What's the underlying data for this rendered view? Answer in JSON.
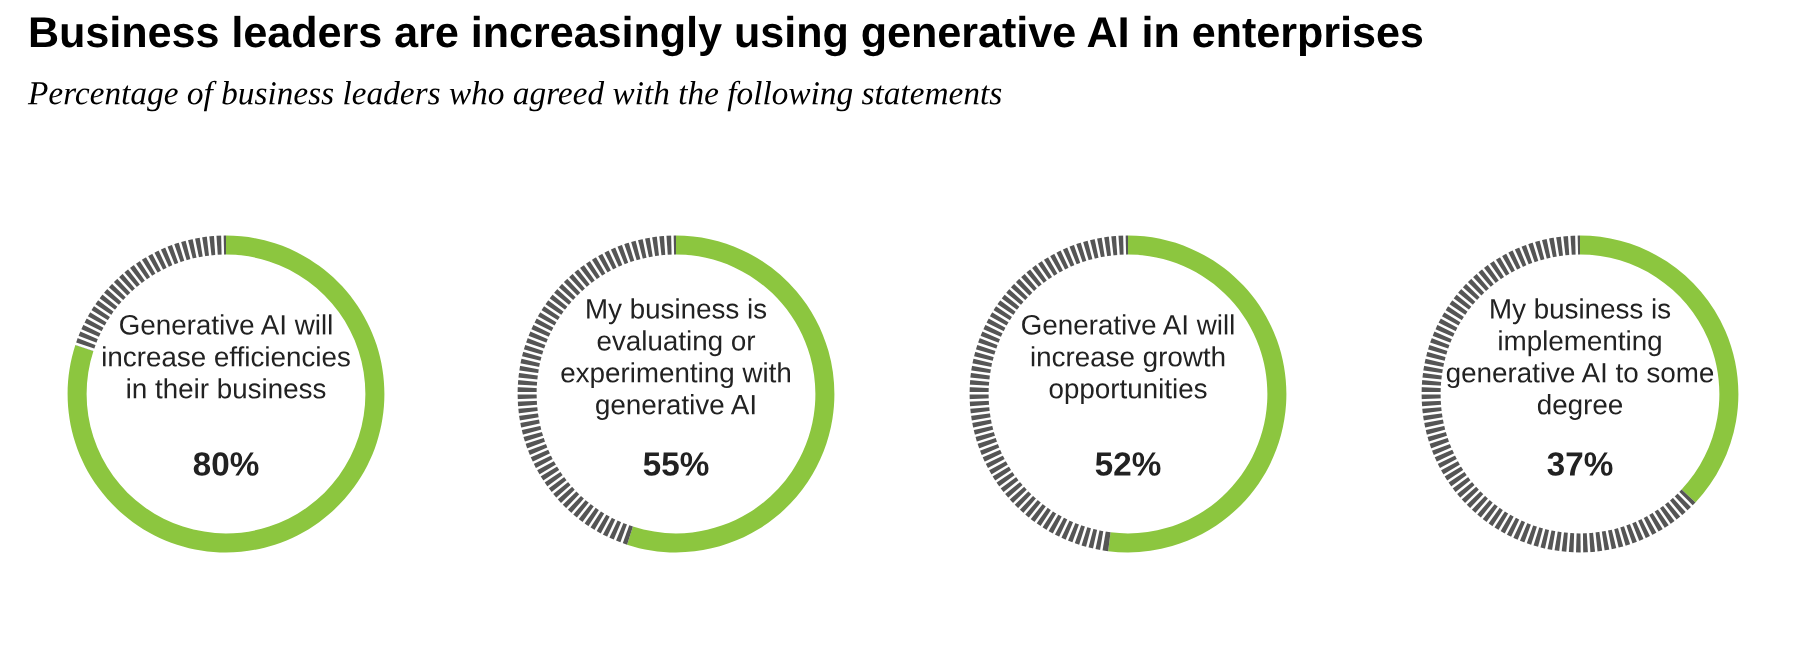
{
  "chart_data": [
    {
      "type": "donut",
      "title": "Business leaders are increasingly using generative AI in enterprises",
      "subtitle": "Percentage of business leaders who agreed with the following statements",
      "annotations": [
        "Generative AI will\nincrease efficiencies\nin their business",
        "80%"
      ],
      "categories": [
        null,
        null
      ],
      "values": [
        80,
        20
      ],
      "colors": [
        "#8cc63f",
        "#555555"
      ]
    },
    {
      "type": "donut",
      "annotations": [
        "My business is\nevaluating or\nexperimenting with\ngenerative AI",
        "55%"
      ],
      "categories": [
        null,
        null
      ],
      "values": [
        55,
        45
      ],
      "colors": [
        "#8cc63f",
        "#555555"
      ]
    },
    {
      "type": "donut",
      "annotations": [
        "Generative AI will\nincrease growth\nopportunities",
        "52%"
      ],
      "categories": [
        null,
        null
      ],
      "values": [
        52,
        48
      ],
      "colors": [
        "#8cc63f",
        "#555555"
      ]
    },
    {
      "type": "donut",
      "annotations": [
        "My business is\nimplementing\ngenerative AI to some\ndegree",
        "37%"
      ],
      "categories": [
        null,
        null
      ],
      "values": [
        37,
        63
      ],
      "colors": [
        "#8cc63f",
        "#555555"
      ]
    }
  ]
}
